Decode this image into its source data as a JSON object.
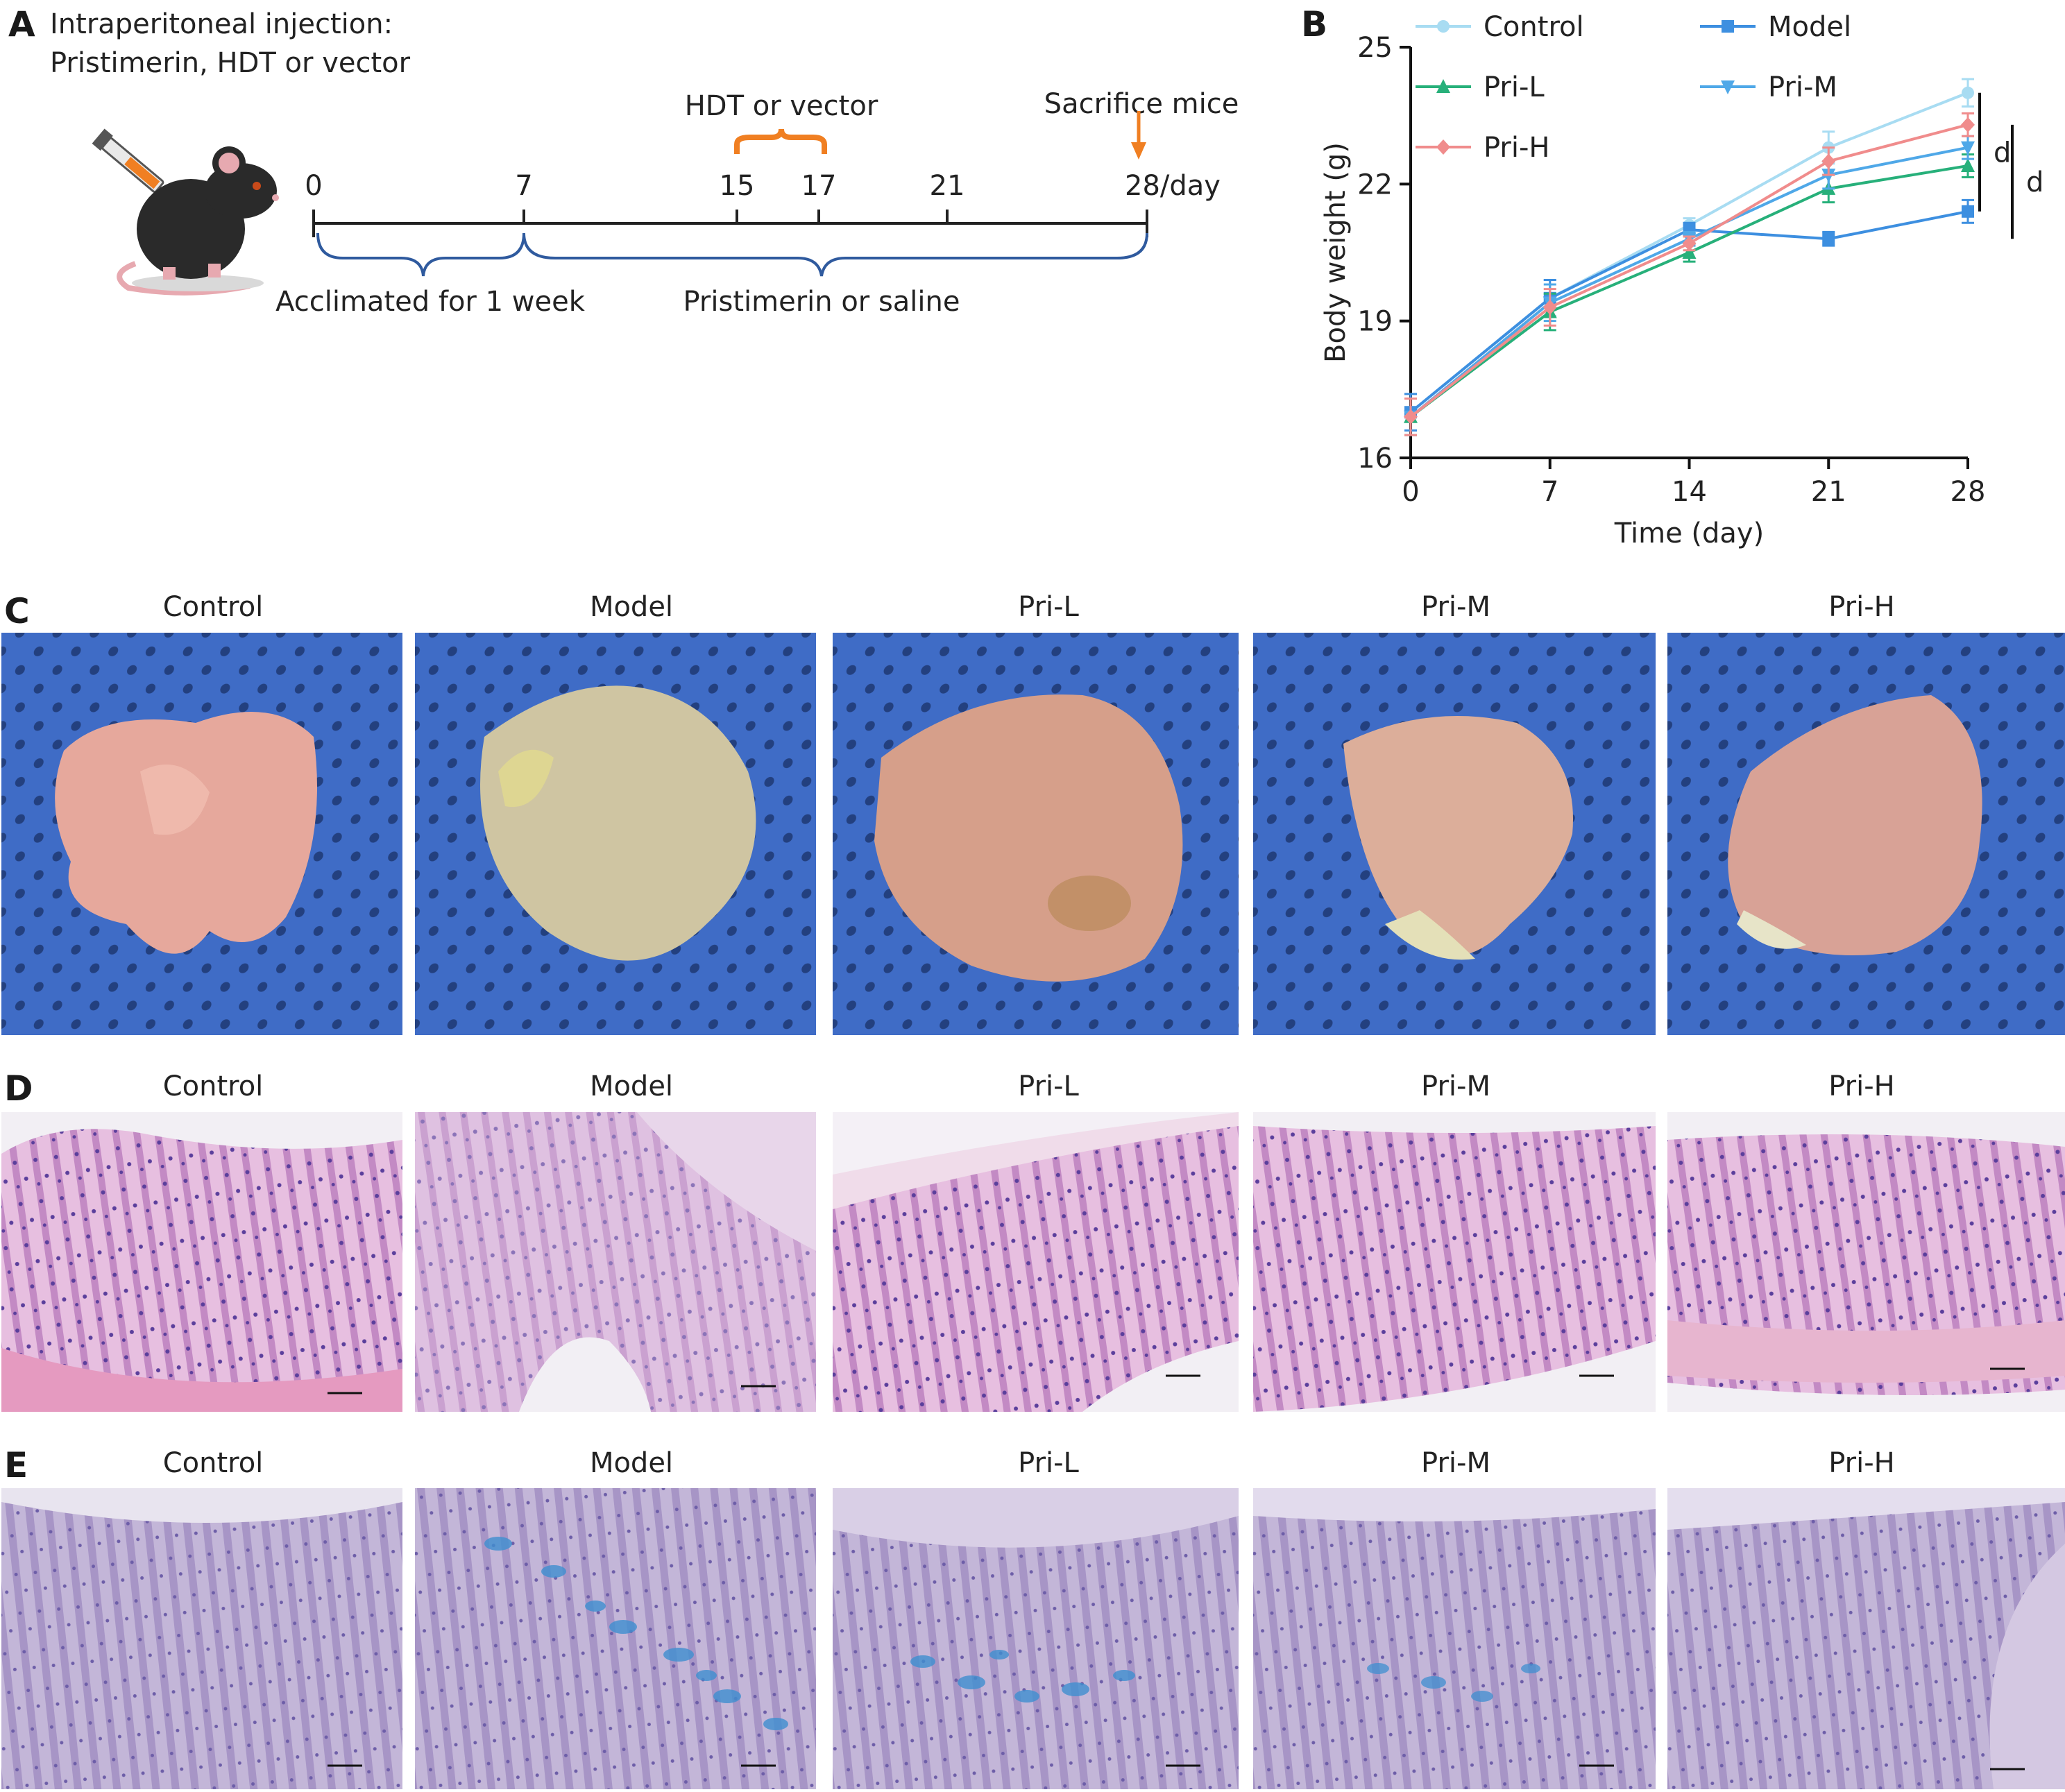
{
  "panel_a": {
    "letter": "A",
    "injection_line1": "Intraperitoneal injection:",
    "injection_line2": "Pristimerin, HDT or vector",
    "hdt_label": "HDT or vector",
    "sacrifice_label": "Sacrifice mice",
    "timeline_ticks": [
      "0",
      "7",
      "15",
      "17",
      "21",
      "28/day"
    ],
    "acclimated_label": "Acclimated for 1 week",
    "pristimerin_label": "Pristimerin or saline"
  },
  "chart_data": {
    "letter": "B",
    "type": "line",
    "xlabel": "Time (day)",
    "ylabel": "Body weight (g)",
    "x": [
      0,
      7,
      14,
      21,
      28
    ],
    "x_ticks": [
      "0",
      "7",
      "14",
      "21",
      "28"
    ],
    "y_ticks": [
      "16",
      "19",
      "22",
      "25"
    ],
    "ylim": [
      16,
      25
    ],
    "xlim": [
      0,
      28
    ],
    "legend_position": "top",
    "significance_labels": [
      "d",
      "d"
    ],
    "series": [
      {
        "name": "Control",
        "color": "#a8dcf2",
        "marker": "circle",
        "values": [
          17.0,
          19.5,
          21.1,
          22.8,
          24.0
        ],
        "errors": [
          0.4,
          0.4,
          0.15,
          0.35,
          0.3
        ]
      },
      {
        "name": "Model",
        "color": "#3d8fe0",
        "marker": "square",
        "values": [
          17.0,
          19.5,
          21.0,
          20.8,
          21.4
        ],
        "errors": [
          0.4,
          0.4,
          0.15,
          0.15,
          0.25
        ]
      },
      {
        "name": "Pri-L",
        "color": "#27b07a",
        "marker": "triangle-up",
        "values": [
          16.9,
          19.2,
          20.5,
          21.9,
          22.4
        ],
        "errors": [
          0.4,
          0.4,
          0.2,
          0.3,
          0.25
        ]
      },
      {
        "name": "Pri-M",
        "color": "#4fa8e8",
        "marker": "triangle-down",
        "values": [
          16.9,
          19.4,
          20.8,
          22.2,
          22.8
        ],
        "errors": [
          0.4,
          0.4,
          0.15,
          0.3,
          0.25
        ]
      },
      {
        "name": "Pri-H",
        "color": "#f08c8c",
        "marker": "diamond",
        "values": [
          16.9,
          19.3,
          20.7,
          22.5,
          23.3
        ],
        "errors": [
          0.4,
          0.4,
          0.15,
          0.3,
          0.25
        ]
      }
    ]
  },
  "panel_c": {
    "letter": "C",
    "captions": [
      "Control",
      "Model",
      "Pri-L",
      "Pri-M",
      "Pri-H"
    ]
  },
  "panel_d": {
    "letter": "D",
    "captions": [
      "Control",
      "Model",
      "Pri-L",
      "Pri-M",
      "Pri-H"
    ]
  },
  "panel_e": {
    "letter": "E",
    "captions": [
      "Control",
      "Model",
      "Pri-L",
      "Pri-M",
      "Pri-H"
    ]
  },
  "colors": {
    "timeline_bracket": "#2f5a9e",
    "hdt_bracket": "#f07f22",
    "photo_background": "#3f6cc6",
    "he_stain": "#c991c8",
    "ab_stain": "#b6a3cf"
  }
}
